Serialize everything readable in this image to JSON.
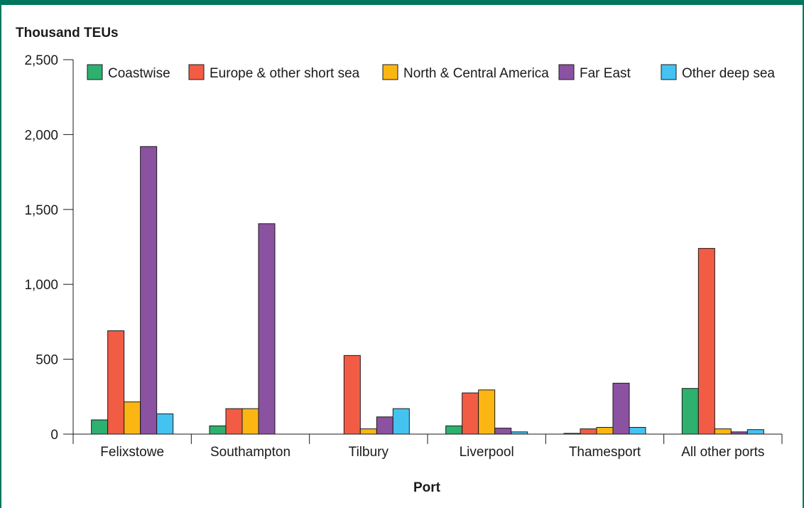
{
  "chart_data": {
    "type": "bar",
    "title": "",
    "ylabel": "Thousand TEUs",
    "xlabel": "Port",
    "ylim": [
      0,
      2500
    ],
    "yticks": [
      0,
      500,
      1000,
      1500,
      2000,
      2500
    ],
    "ytick_labels": [
      "0",
      "500",
      "1,000",
      "1,500",
      "2,000",
      "2,500"
    ],
    "grid": false,
    "legend_position": "top",
    "categories": [
      "Felixstowe",
      "Southampton",
      "Tilbury",
      "Liverpool",
      "Thamesport",
      "All other ports"
    ],
    "series": [
      {
        "name": "Coastwise",
        "color": "#2eb06f",
        "values": [
          95,
          55,
          0,
          55,
          5,
          305
        ]
      },
      {
        "name": "Europe & other short sea",
        "color": "#f25c45",
        "values": [
          690,
          170,
          525,
          275,
          35,
          1240
        ]
      },
      {
        "name": "North & Central America",
        "color": "#fcb614",
        "values": [
          215,
          170,
          35,
          295,
          45,
          35
        ]
      },
      {
        "name": "Far East",
        "color": "#8b52a1",
        "values": [
          1920,
          1405,
          115,
          40,
          340,
          15
        ]
      },
      {
        "name": "Other deep sea",
        "color": "#45c3f0",
        "values": [
          135,
          0,
          170,
          15,
          45,
          30
        ]
      }
    ]
  }
}
